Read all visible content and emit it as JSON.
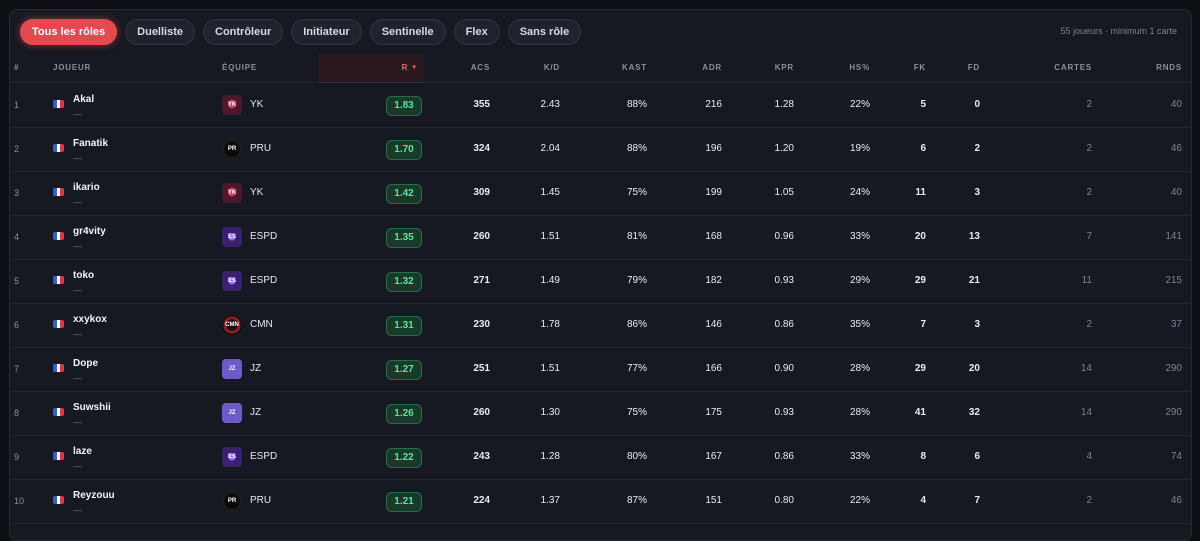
{
  "filters": {
    "tabs": [
      "Tous les rôles",
      "Duelliste",
      "Contrôleur",
      "Initiateur",
      "Sentinelle",
      "Flex",
      "Sans rôle"
    ],
    "active_index": 0,
    "summary": "55 joueurs · minimum 1 carte"
  },
  "table": {
    "headers": {
      "rank": "#",
      "player": "JOUEUR",
      "team": "ÉQUIPE",
      "rating": "R",
      "acs": "ACS",
      "kd": "K/D",
      "kast": "KAST",
      "adr": "ADR",
      "kpr": "KPR",
      "hs": "HS%",
      "fk": "FK",
      "fd": "FD",
      "maps": "CARTES",
      "rounds": "RNDS"
    },
    "sorted_column": "rating",
    "accent_color": "#e5484f",
    "rating_badge_color": "#5ee29a",
    "rows": [
      {
        "rank": "1",
        "player": "Akal",
        "sub": "—",
        "flag": "fr",
        "logo": "yk",
        "team": "YK",
        "rating": "1.83",
        "acs": "355",
        "kd": "2.43",
        "kast": "88%",
        "adr": "216",
        "kpr": "1.28",
        "hs": "22%",
        "fk": "5",
        "fd": "0",
        "maps": "2",
        "rounds": "40"
      },
      {
        "rank": "2",
        "player": "Fanatik",
        "sub": "—",
        "flag": "fr",
        "logo": "pru",
        "team": "PRU",
        "rating": "1.70",
        "acs": "324",
        "kd": "2.04",
        "kast": "88%",
        "adr": "196",
        "kpr": "1.20",
        "hs": "19%",
        "fk": "6",
        "fd": "2",
        "maps": "2",
        "rounds": "46"
      },
      {
        "rank": "3",
        "player": "ikario",
        "sub": "—",
        "flag": "fr",
        "logo": "yk",
        "team": "YK",
        "rating": "1.42",
        "acs": "309",
        "kd": "1.45",
        "kast": "75%",
        "adr": "199",
        "kpr": "1.05",
        "hs": "24%",
        "fk": "11",
        "fd": "3",
        "maps": "2",
        "rounds": "40"
      },
      {
        "rank": "4",
        "player": "gr4vity",
        "sub": "—",
        "flag": "fr",
        "logo": "espd",
        "team": "ESPD",
        "rating": "1.35",
        "acs": "260",
        "kd": "1.51",
        "kast": "81%",
        "adr": "168",
        "kpr": "0.96",
        "hs": "33%",
        "fk": "20",
        "fd": "13",
        "maps": "7",
        "rounds": "141"
      },
      {
        "rank": "5",
        "player": "toko",
        "sub": "—",
        "flag": "fr",
        "logo": "espd",
        "team": "ESPD",
        "rating": "1.32",
        "acs": "271",
        "kd": "1.49",
        "kast": "79%",
        "adr": "182",
        "kpr": "0.93",
        "hs": "29%",
        "fk": "29",
        "fd": "21",
        "maps": "11",
        "rounds": "215"
      },
      {
        "rank": "6",
        "player": "xxykox",
        "sub": "—",
        "flag": "fr",
        "logo": "cmn",
        "team": "CMN",
        "rating": "1.31",
        "acs": "230",
        "kd": "1.78",
        "kast": "86%",
        "adr": "146",
        "kpr": "0.86",
        "hs": "35%",
        "fk": "7",
        "fd": "3",
        "maps": "2",
        "rounds": "37"
      },
      {
        "rank": "7",
        "player": "Dope",
        "sub": "—",
        "flag": "fr",
        "logo": "jz",
        "team": "JZ",
        "rating": "1.27",
        "acs": "251",
        "kd": "1.51",
        "kast": "77%",
        "adr": "166",
        "kpr": "0.90",
        "hs": "28%",
        "fk": "29",
        "fd": "20",
        "maps": "14",
        "rounds": "290"
      },
      {
        "rank": "8",
        "player": "Suwshii",
        "sub": "—",
        "flag": "fr",
        "logo": "jz",
        "team": "JZ",
        "rating": "1.26",
        "acs": "260",
        "kd": "1.30",
        "kast": "75%",
        "adr": "175",
        "kpr": "0.93",
        "hs": "28%",
        "fk": "41",
        "fd": "32",
        "maps": "14",
        "rounds": "290"
      },
      {
        "rank": "9",
        "player": "laze",
        "sub": "—",
        "flag": "fr",
        "logo": "espd",
        "team": "ESPD",
        "rating": "1.22",
        "acs": "243",
        "kd": "1.28",
        "kast": "80%",
        "adr": "167",
        "kpr": "0.86",
        "hs": "33%",
        "fk": "8",
        "fd": "6",
        "maps": "4",
        "rounds": "74"
      },
      {
        "rank": "10",
        "player": "Reyzouu",
        "sub": "—",
        "flag": "fr",
        "logo": "pru",
        "team": "PRU",
        "rating": "1.21",
        "acs": "224",
        "kd": "1.37",
        "kast": "87%",
        "adr": "151",
        "kpr": "0.80",
        "hs": "22%",
        "fk": "4",
        "fd": "7",
        "maps": "2",
        "rounds": "46"
      }
    ]
  }
}
